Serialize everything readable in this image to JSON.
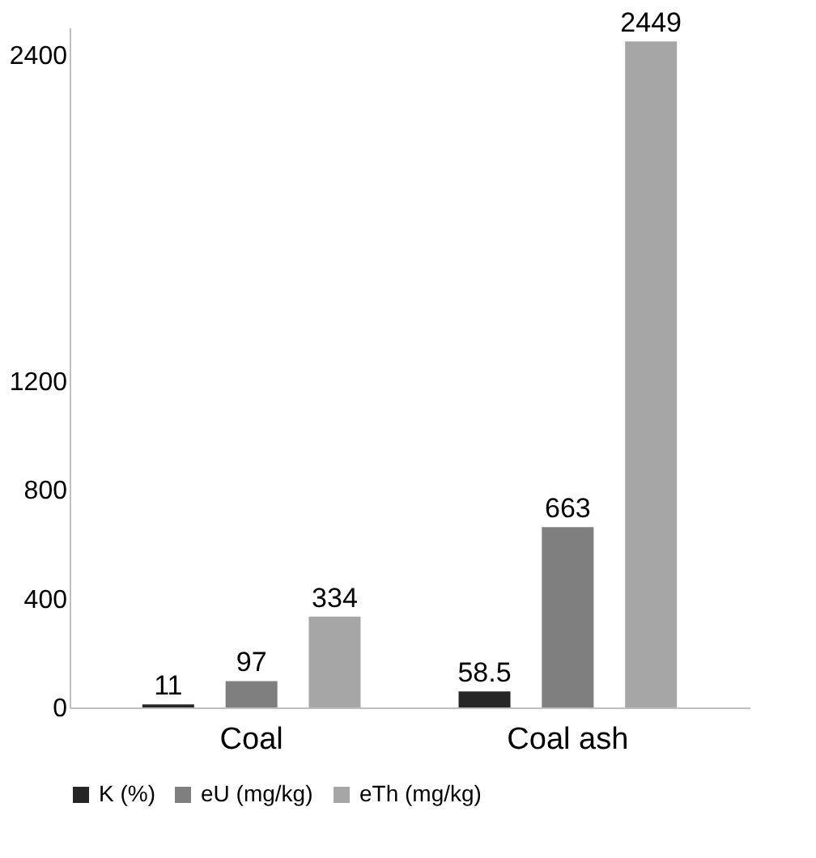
{
  "chart_data": {
    "type": "bar",
    "categories": [
      "Coal",
      "Coal ash"
    ],
    "series": [
      {
        "name": "K (%)",
        "color": "#262626",
        "values": [
          11,
          58.5
        ]
      },
      {
        "name": "eU (mg/kg)",
        "color": "#7f7f7f",
        "values": [
          97,
          663
        ]
      },
      {
        "name": "eTh (mg/kg)",
        "color": "#a6a6a6",
        "values": [
          334,
          2449
        ]
      }
    ],
    "ylim": [
      0,
      2500
    ],
    "yticks": [
      0,
      400,
      800,
      1200,
      2400
    ],
    "data_labels": true,
    "legend": "bottom",
    "grid": false
  }
}
